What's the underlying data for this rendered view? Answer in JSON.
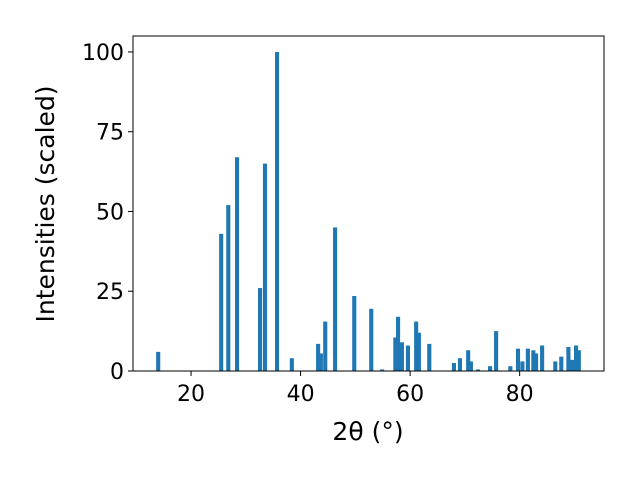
{
  "chart_data": {
    "type": "bar",
    "xlabel": "2θ (°)",
    "ylabel": "Intensities (scaled)",
    "color": "#1f77b4",
    "bar_width": 0.75,
    "x": [
      14.0,
      25.5,
      26.8,
      28.4,
      32.6,
      33.5,
      35.7,
      38.4,
      43.2,
      43.7,
      44.5,
      46.3,
      49.8,
      52.9,
      54.9,
      57.3,
      57.8,
      58.5,
      59.6,
      61.1,
      61.6,
      63.5,
      68.0,
      69.1,
      70.6,
      71.1,
      72.4,
      74.6,
      75.7,
      78.3,
      79.7,
      80.5,
      81.5,
      82.5,
      83.0,
      84.1,
      86.5,
      87.6,
      88.9,
      89.6,
      90.3,
      90.8
    ],
    "values": [
      6,
      43,
      52,
      67,
      26,
      65,
      100,
      4,
      8.5,
      5.5,
      15.5,
      45,
      23.5,
      19.5,
      0.5,
      10.5,
      17,
      9,
      8,
      15.5,
      12,
      8.5,
      2.5,
      4,
      6.5,
      3,
      0.5,
      1.5,
      12.5,
      1.5,
      7,
      3,
      7,
      6.5,
      5.5,
      8,
      3,
      4.5,
      7.5,
      3.5,
      8,
      6.5
    ],
    "xlim": [
      9.4,
      95.4
    ],
    "xticks": [
      20,
      40,
      60,
      80
    ],
    "ylim": [
      0,
      105
    ],
    "yticks": [
      0,
      25,
      50,
      75,
      100
    ]
  }
}
